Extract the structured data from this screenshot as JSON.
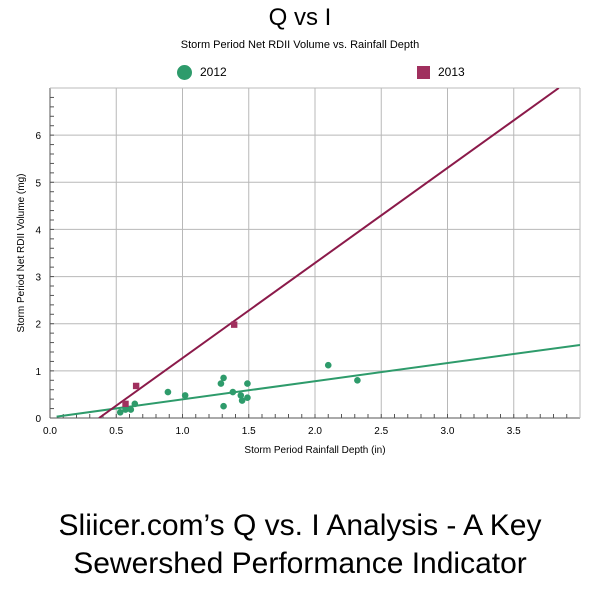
{
  "chart_data": {
    "type": "scatter",
    "title": "Q vs I",
    "subtitle": "Storm Period Net RDII Volume vs. Rainfall Depth",
    "xlabel": "Storm Period Rainfall Depth (in)",
    "ylabel": "Storm Period Net RDII Volume (mg)",
    "xlim": [
      0,
      4.0
    ],
    "ylim": [
      0,
      7.0
    ],
    "x_ticks": [
      "0.0",
      "0.5",
      "1.0",
      "1.5",
      "2.0",
      "2.5",
      "3.0",
      "3.5"
    ],
    "x_tick_values": [
      0,
      0.5,
      1.0,
      1.5,
      2.0,
      2.5,
      3.0,
      3.5
    ],
    "y_ticks": [
      "0",
      "1",
      "2",
      "3",
      "4",
      "5",
      "6"
    ],
    "y_tick_values": [
      0,
      1,
      2,
      3,
      4,
      5,
      6
    ],
    "grid": true,
    "legend_position": "top",
    "series": [
      {
        "name": "2012",
        "color": "#2e9b6b",
        "marker": "circle",
        "points": [
          [
            0.53,
            0.12
          ],
          [
            0.57,
            0.18
          ],
          [
            0.61,
            0.18
          ],
          [
            0.64,
            0.3
          ],
          [
            0.89,
            0.55
          ],
          [
            1.02,
            0.48
          ],
          [
            1.29,
            0.73
          ],
          [
            1.31,
            0.85
          ],
          [
            1.31,
            0.25
          ],
          [
            1.38,
            0.55
          ],
          [
            1.44,
            0.48
          ],
          [
            1.45,
            0.37
          ],
          [
            1.49,
            0.73
          ],
          [
            1.49,
            0.43
          ],
          [
            2.1,
            1.12
          ],
          [
            2.32,
            0.8
          ]
        ],
        "trendline": [
          [
            0.05,
            0.03
          ],
          [
            4.0,
            1.55
          ]
        ]
      },
      {
        "name": "2013",
        "color": "#8b1a4a",
        "marker": "square",
        "points": [
          [
            0.57,
            0.3
          ],
          [
            0.65,
            0.68
          ],
          [
            1.39,
            1.98
          ]
        ],
        "trendline": [
          [
            0.37,
            0.0
          ],
          [
            3.84,
            7.0
          ]
        ]
      }
    ]
  },
  "caption": {
    "line1": "Sliicer.com’s Q vs. I Analysis - A Key",
    "line2": "Sewershed Performance Indicator"
  }
}
